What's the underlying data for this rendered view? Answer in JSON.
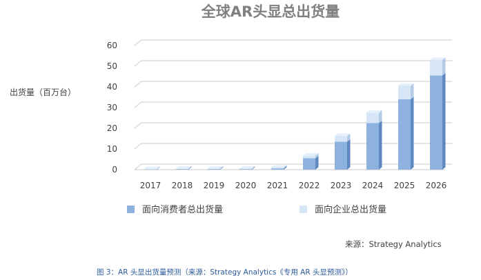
{
  "chart_data": {
    "type": "bar",
    "title": "全球AR头显总出货量",
    "ylabel": "出货量（百万台）",
    "categories": [
      "2017",
      "2018",
      "2019",
      "2020",
      "2021",
      "2022",
      "2023",
      "2024",
      "2025",
      "2026"
    ],
    "series": [
      {
        "name": "面向消费者总出货量",
        "values": [
          0.2,
          0.3,
          0.3,
          0.3,
          0.6,
          5.5,
          13.5,
          22.5,
          34,
          45.5
        ]
      },
      {
        "name": "面向企业总出货量",
        "values": [
          0.1,
          0.2,
          0.2,
          0.2,
          0.4,
          1.3,
          2.8,
          5,
          6.5,
          7.5
        ]
      }
    ],
    "ylim": [
      0,
      60
    ],
    "yticks": [
      0,
      10,
      20,
      30,
      40,
      50,
      60
    ],
    "grid": true,
    "legend_position": "bottom",
    "colors": {
      "consumer_front": "#8db2e0",
      "consumer_top": "#a9c6ea",
      "consumer_side": "#5f88c0",
      "enterprise_front": "#d6e6f6",
      "enterprise_top": "#e6f0fa",
      "enterprise_side": "#b3cbe6",
      "grid": "#c8c8c8",
      "caption": "#2b5b9c"
    }
  },
  "source": "来源：Strategy Analytics",
  "caption": "图 3：AR 头显出货量预测（来源：Strategy Analytics《专用 AR 头显预测》）"
}
